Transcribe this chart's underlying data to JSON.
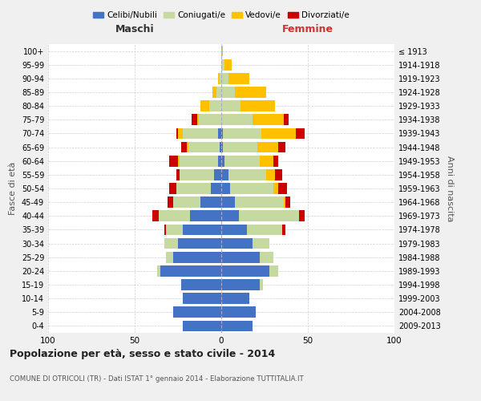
{
  "age_groups": [
    "0-4",
    "5-9",
    "10-14",
    "15-19",
    "20-24",
    "25-29",
    "30-34",
    "35-39",
    "40-44",
    "45-49",
    "50-54",
    "55-59",
    "60-64",
    "65-69",
    "70-74",
    "75-79",
    "80-84",
    "85-89",
    "90-94",
    "95-99",
    "100+"
  ],
  "birth_years": [
    "2009-2013",
    "2004-2008",
    "1999-2003",
    "1994-1998",
    "1989-1993",
    "1984-1988",
    "1979-1983",
    "1974-1978",
    "1969-1973",
    "1964-1968",
    "1959-1963",
    "1954-1958",
    "1949-1953",
    "1944-1948",
    "1939-1943",
    "1934-1938",
    "1929-1933",
    "1924-1928",
    "1919-1923",
    "1914-1918",
    "≤ 1913"
  ],
  "male": {
    "celibi": [
      22,
      28,
      22,
      23,
      35,
      28,
      25,
      22,
      18,
      12,
      6,
      4,
      2,
      1,
      2,
      0,
      0,
      0,
      0,
      0,
      0
    ],
    "coniugati": [
      0,
      0,
      0,
      0,
      2,
      4,
      8,
      10,
      18,
      16,
      20,
      20,
      22,
      18,
      20,
      13,
      7,
      3,
      1,
      0,
      0
    ],
    "vedovi": [
      0,
      0,
      0,
      0,
      0,
      0,
      0,
      0,
      0,
      0,
      0,
      0,
      1,
      1,
      3,
      1,
      5,
      2,
      1,
      0,
      0
    ],
    "divorziati": [
      0,
      0,
      0,
      0,
      0,
      0,
      0,
      1,
      4,
      3,
      4,
      2,
      5,
      3,
      1,
      3,
      0,
      0,
      0,
      0,
      0
    ]
  },
  "female": {
    "nubili": [
      18,
      20,
      16,
      22,
      28,
      22,
      18,
      15,
      10,
      8,
      5,
      4,
      2,
      1,
      1,
      0,
      0,
      0,
      0,
      0,
      0
    ],
    "coniugate": [
      0,
      0,
      0,
      2,
      5,
      8,
      10,
      20,
      35,
      28,
      25,
      22,
      20,
      20,
      22,
      18,
      11,
      8,
      4,
      2,
      0
    ],
    "vedove": [
      0,
      0,
      0,
      0,
      0,
      0,
      0,
      0,
      0,
      1,
      3,
      5,
      8,
      12,
      20,
      18,
      20,
      18,
      12,
      4,
      1
    ],
    "divorziate": [
      0,
      0,
      0,
      0,
      0,
      0,
      0,
      2,
      3,
      3,
      5,
      4,
      3,
      4,
      5,
      3,
      0,
      0,
      0,
      0,
      0
    ]
  },
  "colors": {
    "celibi": "#4472c4",
    "coniugati": "#c5d9a0",
    "vedovi": "#ffc000",
    "divorziati": "#cc0000"
  },
  "title": "Popolazione per età, sesso e stato civile - 2014",
  "subtitle": "COMUNE DI OTRICOLI (TR) - Dati ISTAT 1° gennaio 2014 - Elaborazione TUTTITALIA.IT",
  "xlabel_left": "Maschi",
  "xlabel_right": "Femmine",
  "ylabel_left": "Fasce di età",
  "ylabel_right": "Anni di nascita",
  "xlim": 100,
  "legend_labels": [
    "Celibi/Nubili",
    "Coniugati/e",
    "Vedovi/e",
    "Divorziati/e"
  ],
  "bg_color": "#f0f0f0",
  "plot_bg": "#ffffff"
}
